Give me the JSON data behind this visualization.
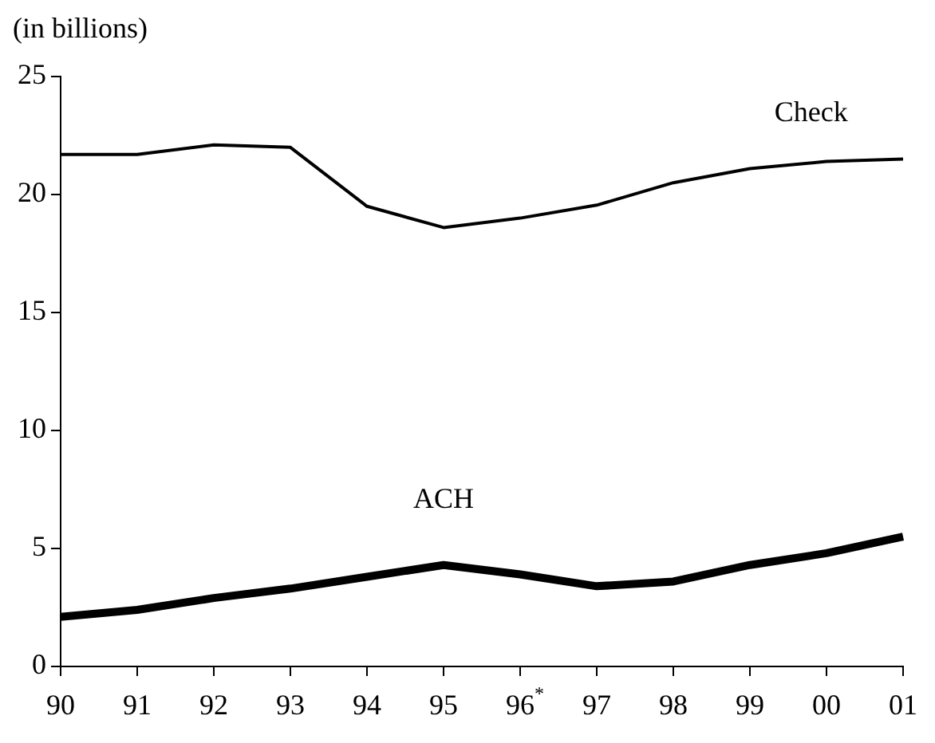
{
  "chart_data": {
    "type": "line",
    "ylabel": "(in billions)",
    "categories": [
      "90",
      "91",
      "92",
      "93",
      "94",
      "95",
      "96$^{*}$",
      "97",
      "98",
      "99",
      "00",
      "01"
    ],
    "series": [
      {
        "name": "Check",
        "color": "#000000",
        "values": [
          21.7,
          21.7,
          22.1,
          22.0,
          19.5,
          18.6,
          19.0,
          19.55,
          20.5,
          21.1,
          21.4,
          21.5
        ]
      },
      {
        "name": "ACH",
        "color": "#000000",
        "values": [
          2.1,
          2.4,
          2.9,
          3.3,
          3.8,
          4.3,
          3.9,
          3.4,
          3.6,
          4.3,
          4.8,
          5.5
        ]
      }
    ],
    "ylim": [
      0,
      25
    ],
    "yticks": [
      0,
      5,
      10,
      15,
      20,
      25
    ],
    "grid": false,
    "legend": false,
    "marker": "none",
    "line_style": "solid"
  }
}
